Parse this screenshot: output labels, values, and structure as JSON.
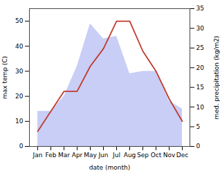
{
  "chart_data": {
    "type": "line",
    "categories": [
      "Jan",
      "Feb",
      "Mar",
      "Apr",
      "May",
      "Jun",
      "Jul",
      "Aug",
      "Sep",
      "Oct",
      "Nov",
      "Dec"
    ],
    "series": [
      {
        "type": "area",
        "color": "#c8cef5",
        "values": [
          14,
          14,
          20,
          32,
          49,
          43,
          44,
          29,
          30,
          30,
          18,
          15
        ]
      },
      {
        "type": "line",
        "color": "#c0392b",
        "values": [
          6,
          14,
          22,
          22,
          32,
          39,
          50,
          50,
          38,
          30,
          19,
          10
        ]
      }
    ],
    "xlabel": "date (month)",
    "ylabel": "max temp (C)",
    "y2label": "med. precipitation (kg/m2)",
    "ylim": [
      0,
      55
    ],
    "yticks": [
      0,
      10,
      20,
      30,
      40,
      50
    ],
    "y2lim": [
      0,
      35
    ],
    "y2ticks": [
      0,
      5,
      10,
      15,
      20,
      25,
      30,
      35
    ]
  }
}
